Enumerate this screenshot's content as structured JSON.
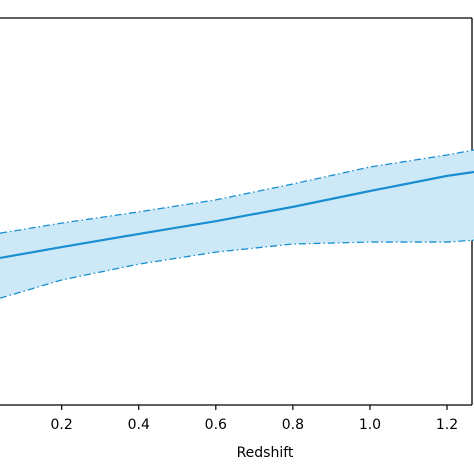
{
  "chart_data": {
    "type": "line",
    "xlabel": "Redshift",
    "x": [
      0.04,
      0.2,
      0.4,
      0.6,
      0.8,
      1.0,
      1.2,
      1.27
    ],
    "values": [
      3.8,
      4.08,
      4.42,
      4.75,
      5.12,
      5.53,
      5.92,
      6.02
    ],
    "upper": [
      4.44,
      4.7,
      4.99,
      5.3,
      5.71,
      6.15,
      6.46,
      6.59
    ],
    "lower": [
      2.76,
      3.23,
      3.64,
      3.95,
      4.16,
      4.21,
      4.21,
      4.26
    ],
    "color": "#1a8fd0",
    "band_color": "#cde9f7",
    "xlim": [
      0.04,
      1.27
    ],
    "ylim": [
      0,
      10
    ],
    "xticks": [
      0.2,
      0.4,
      0.6,
      0.8,
      {
        "value": 1.0,
        "label": "1.0"
      },
      1.2
    ]
  }
}
